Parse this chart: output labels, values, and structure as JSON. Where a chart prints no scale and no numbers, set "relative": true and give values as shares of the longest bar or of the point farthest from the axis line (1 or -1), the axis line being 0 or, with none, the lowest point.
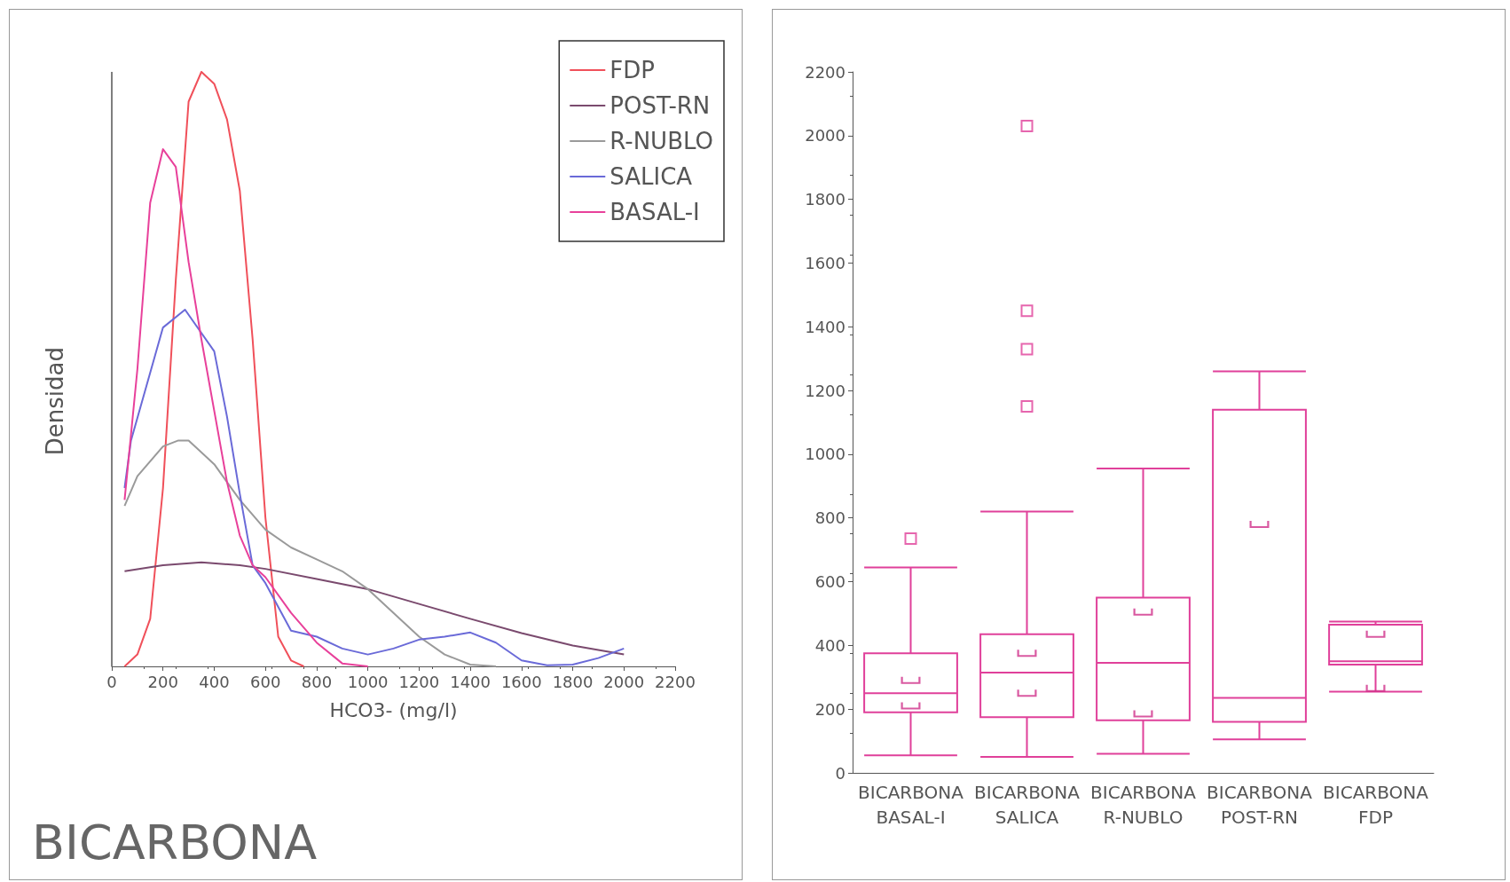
{
  "chart_data": [
    {
      "type": "line",
      "title": "BICARBONA",
      "xlabel": "HCO3- (mg/l)",
      "ylabel": "Densidad",
      "relative": true,
      "xlim": [
        0,
        2200
      ],
      "xticks": [
        0,
        200,
        400,
        600,
        800,
        1000,
        1200,
        1400,
        1600,
        1800,
        2000,
        2200
      ],
      "legend": "top right",
      "grid": false,
      "tick_labels": "x",
      "series": [
        {
          "name": "FDP",
          "color": "#f0505a",
          "x": [
            50,
            100,
            150,
            200,
            250,
            300,
            350,
            400,
            450,
            500,
            550,
            600,
            650,
            700,
            750
          ],
          "values": [
            0,
            0.02,
            0.08,
            0.3,
            0.65,
            0.95,
            1.0,
            0.98,
            0.92,
            0.8,
            0.55,
            0.25,
            0.05,
            0.01,
            0
          ]
        },
        {
          "name": "POST-RN",
          "color": "#7a4a6e",
          "x": [
            50,
            200,
            350,
            500,
            600,
            800,
            1000,
            1200,
            1400,
            1600,
            1800,
            2000
          ],
          "values": [
            0.16,
            0.17,
            0.175,
            0.17,
            0.164,
            0.147,
            0.13,
            0.105,
            0.08,
            0.056,
            0.035,
            0.02
          ]
        },
        {
          "name": "R-NUBLO",
          "color": "#9a9a9a",
          "x": [
            50,
            100,
            200,
            260,
            300,
            400,
            500,
            600,
            700,
            800,
            900,
            1000,
            1100,
            1200,
            1300,
            1400,
            1500
          ],
          "values": [
            0.27,
            0.32,
            0.37,
            0.38,
            0.38,
            0.34,
            0.28,
            0.23,
            0.2,
            0.18,
            0.16,
            0.13,
            0.09,
            0.05,
            0.02,
            0.003,
            0
          ]
        },
        {
          "name": "SALICA",
          "color": "#6a6ad8",
          "x": [
            50,
            75,
            200,
            286,
            400,
            450,
            500,
            550,
            600,
            700,
            800,
            900,
            1000,
            1100,
            1200,
            1300,
            1400,
            1500,
            1600,
            1700,
            1800,
            1900,
            2000
          ],
          "values": [
            0.3,
            0.38,
            0.57,
            0.6,
            0.53,
            0.42,
            0.29,
            0.17,
            0.14,
            0.06,
            0.05,
            0.03,
            0.02,
            0.03,
            0.045,
            0.05,
            0.057,
            0.04,
            0.01,
            0.002,
            0.003,
            0.014,
            0.03
          ]
        },
        {
          "name": "BASAL-I",
          "color": "#e8409a",
          "x": [
            50,
            100,
            150,
            200,
            250,
            300,
            350,
            400,
            450,
            500,
            550,
            600,
            700,
            800,
            900,
            1000
          ],
          "values": [
            0.28,
            0.5,
            0.78,
            0.87,
            0.84,
            0.68,
            0.55,
            0.43,
            0.31,
            0.22,
            0.17,
            0.15,
            0.09,
            0.04,
            0.005,
            0
          ]
        }
      ]
    },
    {
      "type": "box",
      "categories": [
        "BICARBONA\nBASAL-I",
        "BICARBONA\nSALICA",
        "BICARBONA\nR-NUBLO",
        "BICARBONA\nPOST-RN",
        "BICARBONA\nFDP"
      ],
      "ylim": [
        0,
        2200
      ],
      "yticks": [
        0,
        200,
        400,
        600,
        800,
        1000,
        1200,
        1400,
        1600,
        1800,
        2000,
        2200
      ],
      "grid": false,
      "series": [
        {
          "type": "box",
          "color": "#e0409a",
          "boxes": [
            {
              "low": 55,
              "q1": 190,
              "median": 250,
              "q3": 375,
              "high": 645,
              "outliers": [
                735
              ]
            },
            {
              "low": 50,
              "q1": 175,
              "median": 315,
              "q3": 435,
              "high": 820,
              "outliers": [
                1150,
                1330,
                1450,
                2030
              ]
            },
            {
              "low": 60,
              "q1": 165,
              "median": 345,
              "q3": 550,
              "high": 955
            },
            {
              "low": 105,
              "q1": 160,
              "median": 235,
              "q3": 1140,
              "high": 1260
            },
            {
              "low": 255,
              "q1": 340,
              "median": 350,
              "q3": 465,
              "high": 475
            }
          ]
        },
        {
          "type": "scatter",
          "color": "#d0308a",
          "x": [
            "BICARBONA\nBASAL-I",
            "BICARBONA\nBASAL-I",
            "BICARBONA\nSALICA",
            "BICARBONA\nSALICA",
            "BICARBONA\nR-NUBLO",
            "BICARBONA\nR-NUBLO",
            "BICARBONA\nPOST-RN",
            "BICARBONA\nFDP",
            "BICARBONA\nFDP"
          ],
          "values": [
            290,
            210,
            375,
            250,
            505,
            185,
            780,
            435,
            265
          ]
        }
      ]
    }
  ]
}
